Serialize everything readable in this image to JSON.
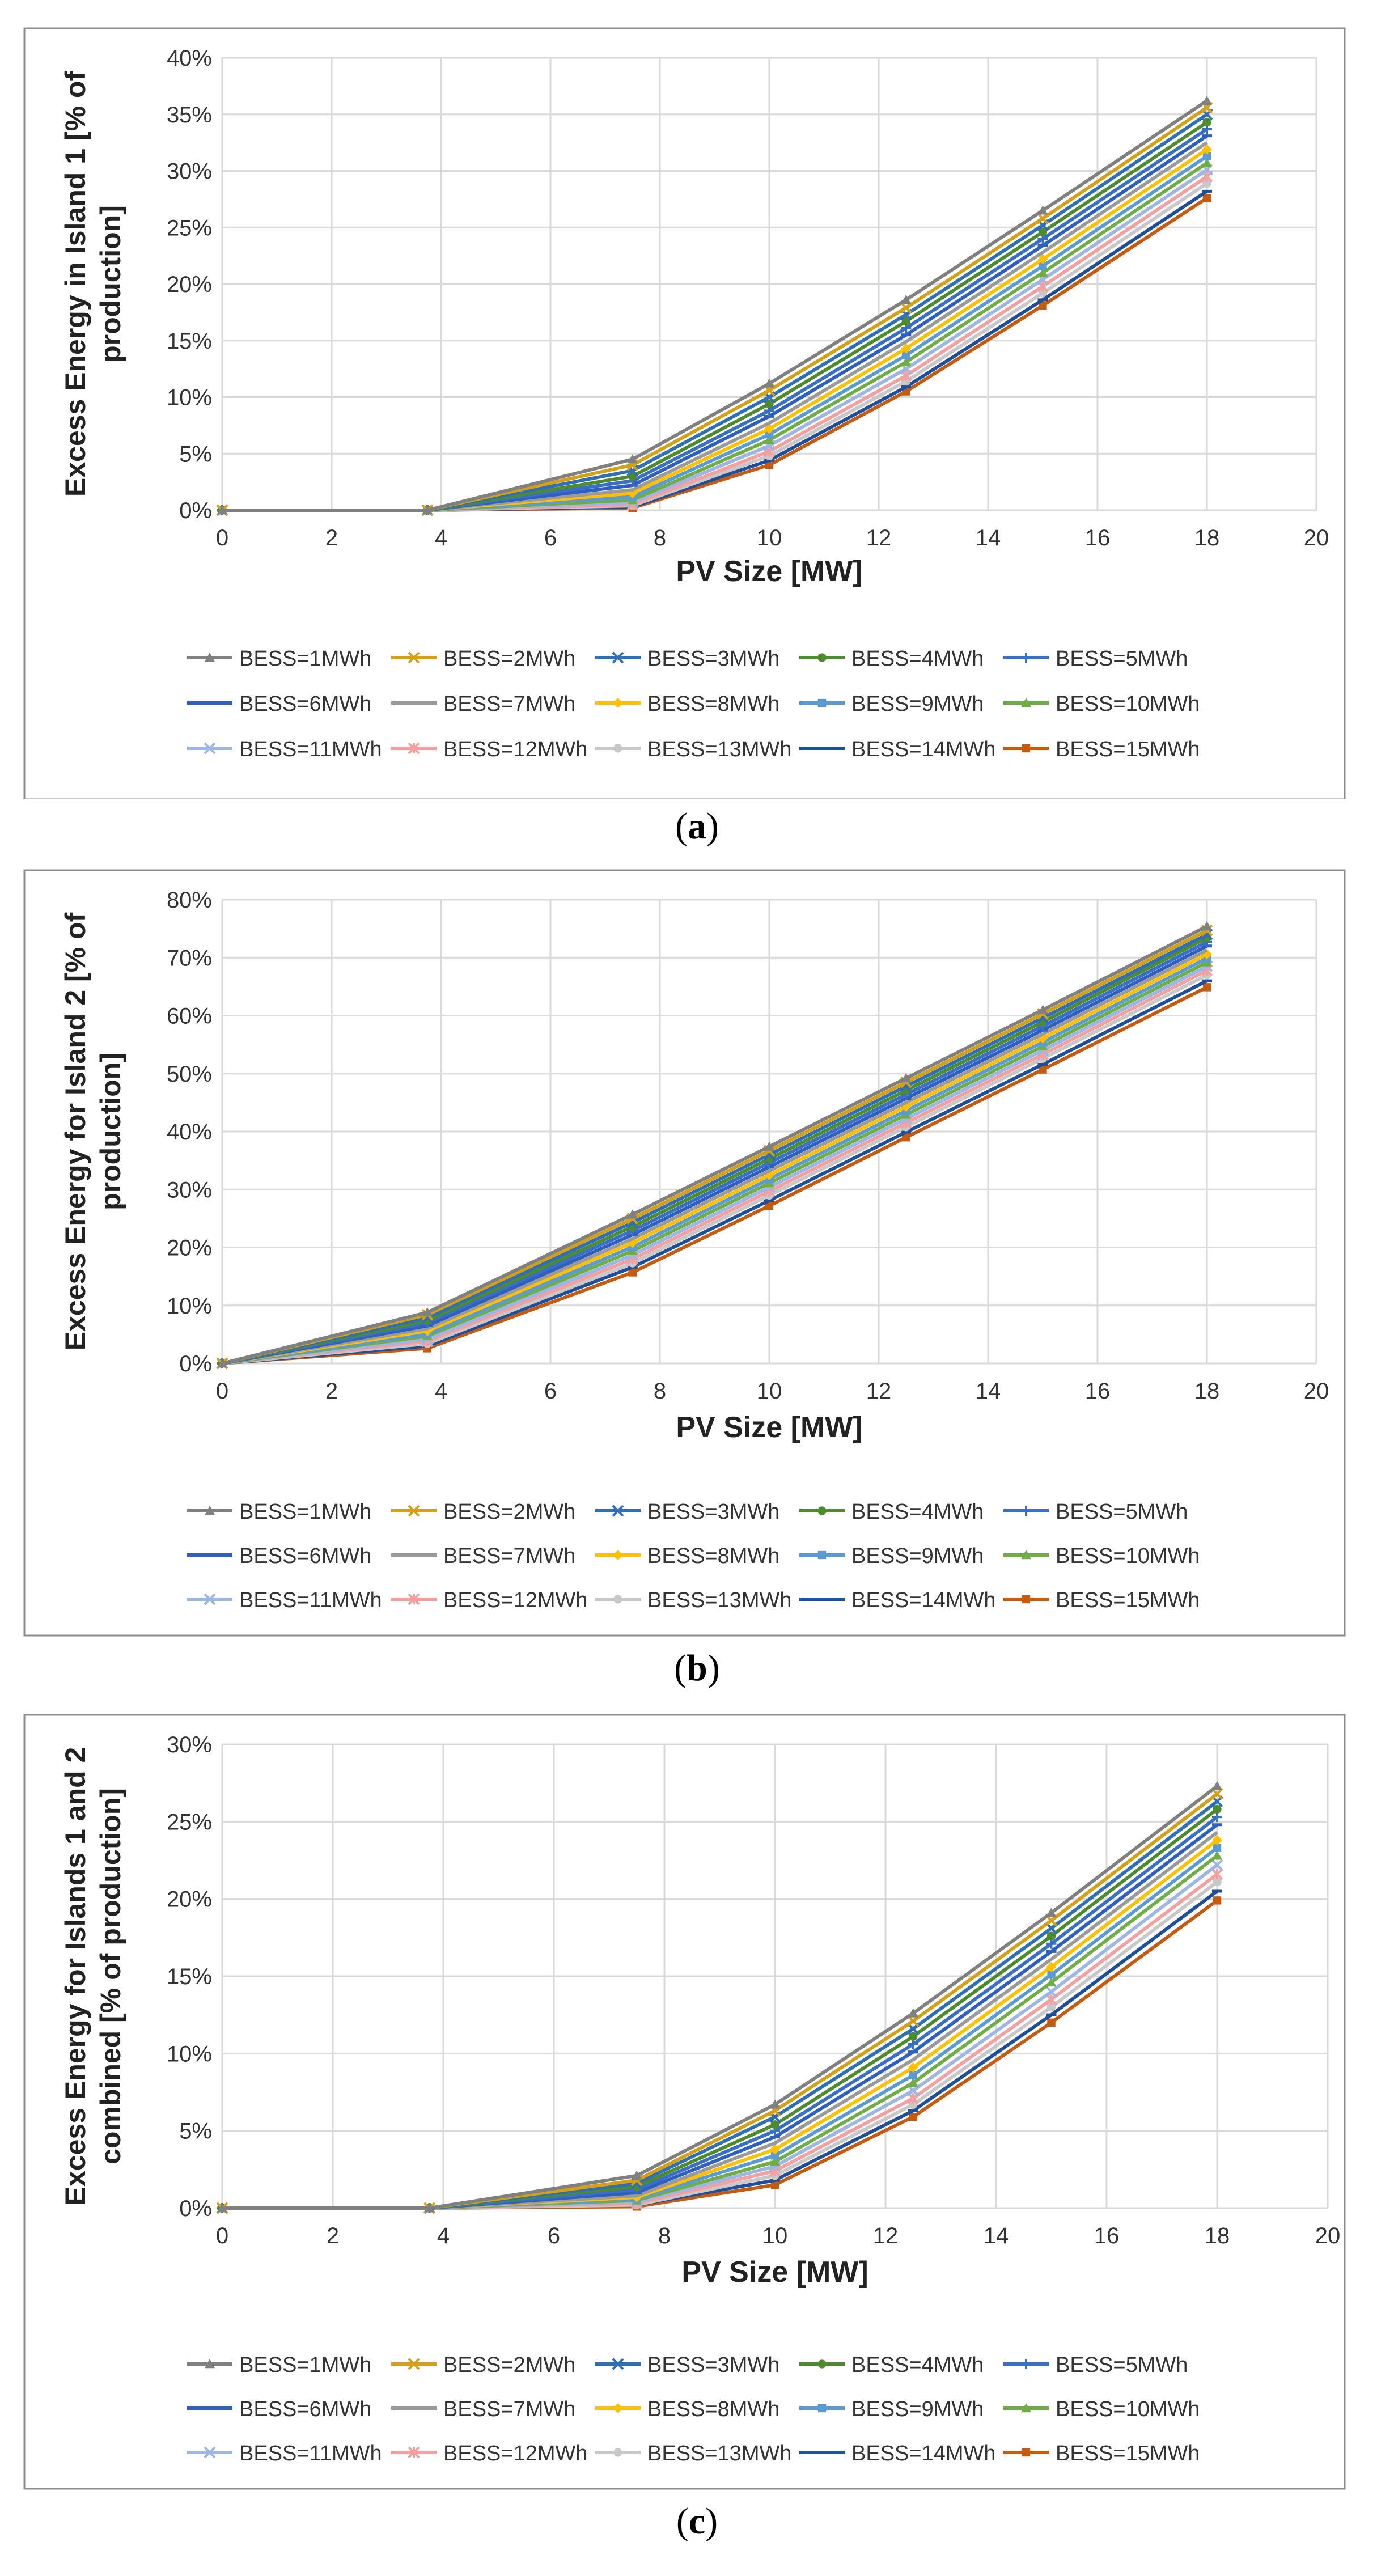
{
  "colors": {
    "frame": "#8c8c8c",
    "grid": "#d9d9d9",
    "series": [
      "#808080",
      "#d4a017",
      "#2e6fb7",
      "#4e8a2e",
      "#3a6fc7",
      "#2f5fc0",
      "#9a9a9a",
      "#ffc000",
      "#5b9bd5",
      "#70ad47",
      "#9db6e3",
      "#f4a0a0",
      "#c8c8c8",
      "#1f4e9a",
      "#c55a11"
    ]
  },
  "legend_labels": [
    "BESS=1MWh",
    "BESS=2MWh",
    "BESS=3MWh",
    "BESS=4MWh",
    "BESS=5MWh",
    "BESS=6MWh",
    "BESS=7MWh",
    "BESS=8MWh",
    "BESS=9MWh",
    "BESS=10MWh",
    "BESS=11MWh",
    "BESS=12MWh",
    "BESS=13MWh",
    "BESS=14MWh",
    "BESS=15MWh"
  ],
  "panel_labels": {
    "a": "a",
    "b": "b",
    "c": "c"
  },
  "chart_data": [
    {
      "type": "line",
      "title": "",
      "xlabel": "PV Size [MW]",
      "ylabel_lines": [
        "Excess Energy in Island 1 [% of",
        "production]"
      ],
      "xlim": [
        0,
        20
      ],
      "xticks": [
        0,
        2,
        4,
        6,
        8,
        10,
        12,
        14,
        16,
        18,
        20
      ],
      "ylim": [
        0,
        40
      ],
      "yticks": [
        0,
        5,
        10,
        15,
        20,
        25,
        30,
        35,
        40
      ],
      "y_tick_labels": [
        "0%",
        "5%",
        "10%",
        "15%",
        "20%",
        "25%",
        "30%",
        "35%",
        "40%"
      ],
      "grid": true,
      "legend": "bottom",
      "x": [
        0,
        3.75,
        7.5,
        10,
        12.5,
        15,
        18
      ],
      "series": [
        {
          "name": "BESS=1MWh",
          "values": [
            0,
            0,
            4.5,
            11.2,
            18.6,
            26.5,
            36.2
          ]
        },
        {
          "name": "BESS=2MWh",
          "values": [
            0,
            0,
            4.0,
            10.6,
            17.9,
            25.8,
            35.6
          ]
        },
        {
          "name": "BESS=3MWh",
          "values": [
            0,
            0,
            3.5,
            10.0,
            17.3,
            25.2,
            35.0
          ]
        },
        {
          "name": "BESS=4MWh",
          "values": [
            0,
            0,
            3.0,
            9.4,
            16.7,
            24.6,
            34.3
          ]
        },
        {
          "name": "BESS=5MWh",
          "values": [
            0,
            0,
            2.6,
            8.8,
            16.1,
            24.0,
            33.7
          ]
        },
        {
          "name": "BESS=6MWh",
          "values": [
            0,
            0,
            2.2,
            8.3,
            15.5,
            23.4,
            33.1
          ]
        },
        {
          "name": "BESS=7MWh",
          "values": [
            0,
            0,
            1.8,
            7.7,
            14.9,
            22.8,
            32.5
          ]
        },
        {
          "name": "BESS=8MWh",
          "values": [
            0,
            0,
            1.5,
            7.2,
            14.3,
            22.2,
            31.9
          ]
        },
        {
          "name": "BESS=9MWh",
          "values": [
            0,
            0,
            1.2,
            6.7,
            13.7,
            21.6,
            31.3
          ]
        },
        {
          "name": "BESS=10MWh",
          "values": [
            0,
            0,
            0.9,
            6.2,
            13.1,
            21.0,
            30.7
          ]
        },
        {
          "name": "BESS=11MWh",
          "values": [
            0,
            0,
            0.7,
            5.7,
            12.5,
            20.4,
            30.1
          ]
        },
        {
          "name": "BESS=12MWh",
          "values": [
            0,
            0,
            0.5,
            5.2,
            11.9,
            19.8,
            29.5
          ]
        },
        {
          "name": "BESS=13MWh",
          "values": [
            0,
            0,
            0.4,
            4.8,
            11.4,
            19.2,
            28.9
          ]
        },
        {
          "name": "BESS=14MWh",
          "values": [
            0,
            0,
            0.3,
            4.4,
            10.9,
            18.6,
            28.2
          ]
        },
        {
          "name": "BESS=15MWh",
          "values": [
            0,
            0,
            0.2,
            4.0,
            10.5,
            18.1,
            27.6
          ]
        }
      ]
    },
    {
      "type": "line",
      "title": "",
      "xlabel": "PV Size [MW]",
      "ylabel_lines": [
        "Excess Energy for Island 2 [% of",
        "production]"
      ],
      "xlim": [
        0,
        20
      ],
      "xticks": [
        0,
        2,
        4,
        6,
        8,
        10,
        12,
        14,
        16,
        18,
        20
      ],
      "ylim": [
        0,
        80
      ],
      "yticks": [
        0,
        10,
        20,
        30,
        40,
        50,
        60,
        70,
        80
      ],
      "y_tick_labels": [
        "0%",
        "10%",
        "20%",
        "30%",
        "40%",
        "50%",
        "60%",
        "70%",
        "80%"
      ],
      "grid": true,
      "legend": "bottom",
      "x": [
        0,
        3.75,
        7.5,
        10,
        12.5,
        15,
        18
      ],
      "series": [
        {
          "name": "BESS=1MWh",
          "values": [
            0,
            8.8,
            25.7,
            37.4,
            49.2,
            61.0,
            75.4
          ]
        },
        {
          "name": "BESS=2MWh",
          "values": [
            0,
            8.4,
            25.0,
            36.7,
            48.5,
            60.3,
            74.7
          ]
        },
        {
          "name": "BESS=3MWh",
          "values": [
            0,
            7.9,
            24.3,
            36.0,
            47.8,
            59.6,
            74.0
          ]
        },
        {
          "name": "BESS=4MWh",
          "values": [
            0,
            7.4,
            23.6,
            35.3,
            47.1,
            58.9,
            73.4
          ]
        },
        {
          "name": "BESS=5MWh",
          "values": [
            0,
            7.0,
            22.9,
            34.6,
            46.4,
            58.2,
            72.7
          ]
        },
        {
          "name": "BESS=6MWh",
          "values": [
            0,
            6.5,
            22.2,
            33.9,
            45.7,
            57.5,
            72.0
          ]
        },
        {
          "name": "BESS=7MWh",
          "values": [
            0,
            6.0,
            21.5,
            33.2,
            45.0,
            56.8,
            71.3
          ]
        },
        {
          "name": "BESS=8MWh",
          "values": [
            0,
            5.6,
            20.8,
            32.5,
            44.3,
            56.1,
            70.6
          ]
        },
        {
          "name": "BESS=9MWh",
          "values": [
            0,
            5.1,
            20.1,
            31.8,
            43.6,
            55.4,
            69.9
          ]
        },
        {
          "name": "BESS=10MWh",
          "values": [
            0,
            4.7,
            19.4,
            31.1,
            42.9,
            54.7,
            69.2
          ]
        },
        {
          "name": "BESS=11MWh",
          "values": [
            0,
            4.2,
            18.7,
            30.4,
            42.2,
            54.0,
            68.5
          ]
        },
        {
          "name": "BESS=12MWh",
          "values": [
            0,
            3.8,
            18.0,
            29.7,
            41.5,
            53.3,
            67.8
          ]
        },
        {
          "name": "BESS=13MWh",
          "values": [
            0,
            3.4,
            17.3,
            29.0,
            40.8,
            52.6,
            67.0
          ]
        },
        {
          "name": "BESS=14MWh",
          "values": [
            0,
            3.0,
            16.6,
            28.1,
            39.9,
            51.6,
            66.0
          ]
        },
        {
          "name": "BESS=15MWh",
          "values": [
            0,
            2.6,
            15.7,
            27.2,
            39.0,
            50.7,
            64.9
          ]
        }
      ]
    },
    {
      "type": "line",
      "title": "",
      "xlabel": "PV Size [MW]",
      "ylabel_lines": [
        "Excess Energy for Islands 1 and 2",
        "combined [% of production]"
      ],
      "xlim": [
        0,
        20
      ],
      "xticks": [
        0,
        2,
        4,
        6,
        8,
        10,
        12,
        14,
        16,
        18,
        20
      ],
      "ylim": [
        0,
        30
      ],
      "yticks": [
        0,
        5,
        10,
        15,
        20,
        25,
        30
      ],
      "y_tick_labels": [
        "0%",
        "5%",
        "10%",
        "15%",
        "20%",
        "25%",
        "30%"
      ],
      "grid": true,
      "legend": "bottom",
      "x": [
        0,
        3.75,
        7.5,
        10,
        12.5,
        15,
        18
      ],
      "series": [
        {
          "name": "BESS=1MWh",
          "values": [
            0,
            0,
            2.1,
            6.7,
            12.6,
            19.1,
            27.3
          ]
        },
        {
          "name": "BESS=2MWh",
          "values": [
            0,
            0,
            1.8,
            6.3,
            12.1,
            18.6,
            26.8
          ]
        },
        {
          "name": "BESS=3MWh",
          "values": [
            0,
            0,
            1.6,
            5.9,
            11.6,
            18.1,
            26.3
          ]
        },
        {
          "name": "BESS=4MWh",
          "values": [
            0,
            0,
            1.4,
            5.4,
            11.1,
            17.6,
            25.8
          ]
        },
        {
          "name": "BESS=5MWh",
          "values": [
            0,
            0,
            1.2,
            5.0,
            10.6,
            17.1,
            25.3
          ]
        },
        {
          "name": "BESS=6MWh",
          "values": [
            0,
            0,
            1.0,
            4.6,
            10.1,
            16.6,
            24.8
          ]
        },
        {
          "name": "BESS=7MWh",
          "values": [
            0,
            0,
            0.8,
            4.2,
            9.6,
            16.1,
            24.3
          ]
        },
        {
          "name": "BESS=8MWh",
          "values": [
            0,
            0,
            0.7,
            3.8,
            9.1,
            15.6,
            23.8
          ]
        },
        {
          "name": "BESS=9MWh",
          "values": [
            0,
            0,
            0.6,
            3.4,
            8.6,
            15.1,
            23.3
          ]
        },
        {
          "name": "BESS=10MWh",
          "values": [
            0,
            0,
            0.5,
            3.0,
            8.1,
            14.6,
            22.8
          ]
        },
        {
          "name": "BESS=11MWh",
          "values": [
            0,
            0,
            0.4,
            2.7,
            7.6,
            14.0,
            22.2
          ]
        },
        {
          "name": "BESS=12MWh",
          "values": [
            0,
            0,
            0.3,
            2.4,
            7.1,
            13.5,
            21.6
          ]
        },
        {
          "name": "BESS=13MWh",
          "values": [
            0,
            0,
            0.2,
            2.1,
            6.7,
            13.0,
            21.1
          ]
        },
        {
          "name": "BESS=14MWh",
          "values": [
            0,
            0,
            0.2,
            1.8,
            6.3,
            12.5,
            20.5
          ]
        },
        {
          "name": "BESS=15MWh",
          "values": [
            0,
            0,
            0.1,
            1.5,
            5.9,
            12.0,
            19.9
          ]
        }
      ]
    }
  ]
}
